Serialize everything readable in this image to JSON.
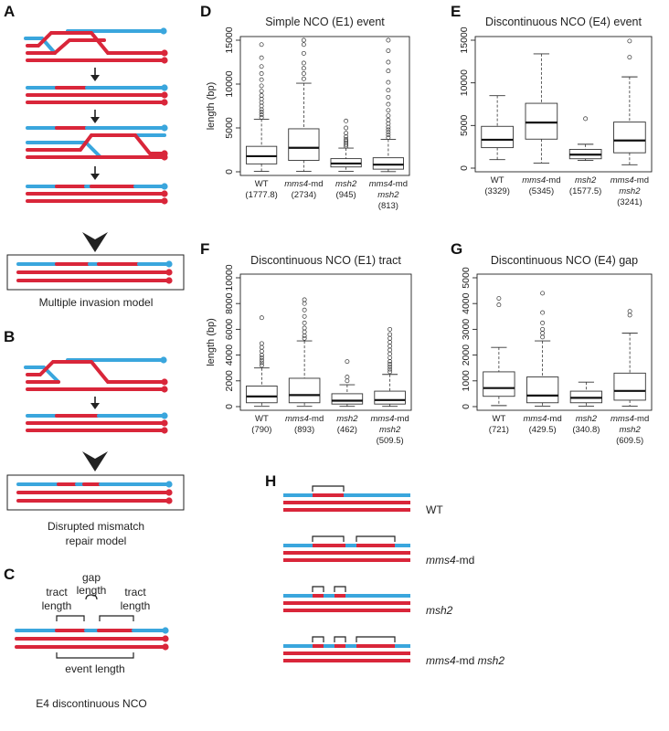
{
  "colors": {
    "blue": "#3aa6dd",
    "red": "#d9263a",
    "ink": "#222222"
  },
  "panels": {
    "A": {
      "label": "A",
      "caption": "Multiple invasion model"
    },
    "B": {
      "label": "B",
      "caption_line1": "Disrupted mismatch",
      "caption_line2": "repair model"
    },
    "C": {
      "label": "C",
      "gap": "gap",
      "length_gap": "length",
      "tract": "tract",
      "length": "length",
      "event_length": "event length",
      "caption": "E4 discontinuous NCO"
    },
    "H": {
      "label": "H",
      "rows": [
        {
          "parts": [
            {
              "text": "WT",
              "italic": false
            }
          ]
        },
        {
          "parts": [
            {
              "text": "mms4",
              "italic": true
            },
            {
              "text": "-md",
              "italic": false
            }
          ]
        },
        {
          "parts": [
            {
              "text": "msh2",
              "italic": true
            }
          ]
        },
        {
          "parts": [
            {
              "text": "mms4",
              "italic": true
            },
            {
              "text": "-md ",
              "italic": false
            },
            {
              "text": "msh2",
              "italic": true
            }
          ]
        }
      ]
    }
  },
  "chart_data": [
    {
      "panel": "D",
      "type": "box",
      "title": "Simple NCO (E1) event",
      "ylabel": "length (bp)",
      "ylim": [
        0,
        15000
      ],
      "yticks": [
        0,
        5000,
        10000,
        15000
      ],
      "categories": [
        {
          "lines": [
            [
              {
                "t": "WT",
                "i": false
              }
            ],
            [
              {
                "t": "(1777.8)",
                "i": false
              }
            ]
          ]
        },
        {
          "lines": [
            [
              {
                "t": "mms4",
                "i": true
              },
              {
                "t": "-md",
                "i": false
              }
            ],
            [
              {
                "t": "(2734)",
                "i": false
              }
            ]
          ]
        },
        {
          "lines": [
            [
              {
                "t": "msh2",
                "i": true
              }
            ],
            [
              {
                "t": "(945)",
                "i": false
              }
            ]
          ]
        },
        {
          "lines": [
            [
              {
                "t": "mms4",
                "i": true
              },
              {
                "t": "-md",
                "i": false
              }
            ],
            [
              {
                "t": "msh2",
                "i": true
              }
            ],
            [
              {
                "t": "(813)",
                "i": false
              }
            ]
          ]
        }
      ],
      "boxes": [
        {
          "q1": 900,
          "median": 1778,
          "q3": 2900,
          "wlo": 50,
          "whi": 6000,
          "outliers": [
            6200,
            6500,
            6800,
            7100,
            7500,
            7900,
            8300,
            8700,
            9200,
            9800,
            10500,
            11200,
            12000,
            13000,
            14500
          ]
        },
        {
          "q1": 1300,
          "median": 2734,
          "q3": 4900,
          "wlo": 50,
          "whi": 10100,
          "outliers": [
            10600,
            11200,
            11800,
            12400,
            13500,
            14500,
            15200
          ]
        },
        {
          "q1": 550,
          "median": 945,
          "q3": 1500,
          "wlo": 50,
          "whi": 2700,
          "outliers": [
            2900,
            3100,
            3300,
            3500,
            3700,
            4000,
            4400,
            5000,
            5800
          ]
        },
        {
          "q1": 300,
          "median": 813,
          "q3": 1600,
          "wlo": 20,
          "whi": 3700,
          "outliers": [
            3900,
            4200,
            4500,
            4800,
            5100,
            5500,
            5900,
            6400,
            7000,
            7700,
            8500,
            9300,
            10200,
            11500,
            12500,
            13800,
            15800
          ]
        }
      ]
    },
    {
      "panel": "E",
      "type": "box",
      "title": "Discontinuous NCO (E4) event",
      "ylabel": "",
      "ylim": [
        0,
        15000
      ],
      "yticks": [
        0,
        5000,
        10000,
        15000
      ],
      "categories": [
        {
          "lines": [
            [
              {
                "t": "WT",
                "i": false
              }
            ],
            [
              {
                "t": "(3329)",
                "i": false
              }
            ]
          ]
        },
        {
          "lines": [
            [
              {
                "t": "mms4",
                "i": true
              },
              {
                "t": "-md",
                "i": false
              }
            ],
            [
              {
                "t": "(5345)",
                "i": false
              }
            ]
          ]
        },
        {
          "lines": [
            [
              {
                "t": "msh2",
                "i": true
              }
            ],
            [
              {
                "t": "(1577.5)",
                "i": false
              }
            ]
          ]
        },
        {
          "lines": [
            [
              {
                "t": "mms4",
                "i": true
              },
              {
                "t": "-md",
                "i": false
              }
            ],
            [
              {
                "t": "msh2",
                "i": true
              }
            ],
            [
              {
                "t": "(3241)",
                "i": false
              }
            ]
          ]
        }
      ],
      "boxes": [
        {
          "q1": 2400,
          "median": 3329,
          "q3": 4900,
          "wlo": 1000,
          "whi": 8500,
          "outliers": []
        },
        {
          "q1": 3400,
          "median": 5345,
          "q3": 7600,
          "wlo": 600,
          "whi": 13400,
          "outliers": []
        },
        {
          "q1": 1100,
          "median": 1578,
          "q3": 2200,
          "wlo": 900,
          "whi": 2800,
          "outliers": [
            5800
          ]
        },
        {
          "q1": 1800,
          "median": 3241,
          "q3": 5400,
          "wlo": 400,
          "whi": 10700,
          "outliers": [
            13000,
            14900
          ]
        }
      ]
    },
    {
      "panel": "F",
      "type": "box",
      "title": "Discontinuous NCO (E1) tract",
      "ylabel": "length (bp)",
      "ylim": [
        0,
        10000
      ],
      "yticks": [
        0,
        2000,
        4000,
        6000,
        8000,
        10000
      ],
      "categories": [
        {
          "lines": [
            [
              {
                "t": "WT",
                "i": false
              }
            ],
            [
              {
                "t": "(790)",
                "i": false
              }
            ]
          ]
        },
        {
          "lines": [
            [
              {
                "t": "mms4",
                "i": true
              },
              {
                "t": "-md",
                "i": false
              }
            ],
            [
              {
                "t": "(893)",
                "i": false
              }
            ]
          ]
        },
        {
          "lines": [
            [
              {
                "t": "msh2",
                "i": true
              }
            ],
            [
              {
                "t": "(462)",
                "i": false
              }
            ]
          ]
        },
        {
          "lines": [
            [
              {
                "t": "mms4",
                "i": true
              },
              {
                "t": "-md",
                "i": false
              }
            ],
            [
              {
                "t": "msh2",
                "i": true
              }
            ],
            [
              {
                "t": "(509.5)",
                "i": false
              }
            ]
          ]
        }
      ],
      "boxes": [
        {
          "q1": 300,
          "median": 790,
          "q3": 1600,
          "wlo": 20,
          "whi": 3000,
          "outliers": [
            3200,
            3400,
            3600,
            3800,
            4000,
            4300,
            4600,
            4900,
            6900
          ]
        },
        {
          "q1": 300,
          "median": 893,
          "q3": 2200,
          "wlo": 20,
          "whi": 5100,
          "outliers": [
            5300,
            5500,
            5800,
            6100,
            6500,
            7000,
            7500,
            8000,
            8300
          ]
        },
        {
          "q1": 200,
          "median": 462,
          "q3": 1000,
          "wlo": 20,
          "whi": 1700,
          "outliers": [
            2000,
            2300,
            3500
          ]
        },
        {
          "q1": 200,
          "median": 510,
          "q3": 1200,
          "wlo": 20,
          "whi": 2500,
          "outliers": [
            2700,
            2900,
            3100,
            3300,
            3500,
            3800,
            4100,
            4400,
            4700,
            5000,
            5300,
            5600,
            6000
          ]
        }
      ]
    },
    {
      "panel": "G",
      "type": "box",
      "title": "Discontinuous NCO (E4) gap",
      "ylabel": "",
      "ylim": [
        0,
        5000
      ],
      "yticks": [
        0,
        1000,
        2000,
        3000,
        4000,
        5000
      ],
      "categories": [
        {
          "lines": [
            [
              {
                "t": "WT",
                "i": false
              }
            ],
            [
              {
                "t": "(721)",
                "i": false
              }
            ]
          ]
        },
        {
          "lines": [
            [
              {
                "t": "mms4",
                "i": true
              },
              {
                "t": "-md",
                "i": false
              }
            ],
            [
              {
                "t": "(429.5)",
                "i": false
              }
            ]
          ]
        },
        {
          "lines": [
            [
              {
                "t": "msh2",
                "i": true
              }
            ],
            [
              {
                "t": "(340.8)",
                "i": false
              }
            ]
          ]
        },
        {
          "lines": [
            [
              {
                "t": "mms4",
                "i": true
              },
              {
                "t": "-md",
                "i": false
              }
            ],
            [
              {
                "t": "msh2",
                "i": true
              }
            ],
            [
              {
                "t": "(609.5)",
                "i": false
              }
            ]
          ]
        }
      ],
      "boxes": [
        {
          "q1": 400,
          "median": 721,
          "q3": 1350,
          "wlo": 40,
          "whi": 2300,
          "outliers": [
            3950,
            4200
          ]
        },
        {
          "q1": 150,
          "median": 430,
          "q3": 1150,
          "wlo": 20,
          "whi": 2550,
          "outliers": [
            2700,
            2850,
            3000,
            3250,
            3650,
            4400
          ]
        },
        {
          "q1": 150,
          "median": 341,
          "q3": 600,
          "wlo": 20,
          "whi": 950,
          "outliers": []
        },
        {
          "q1": 250,
          "median": 610,
          "q3": 1300,
          "wlo": 20,
          "whi": 2850,
          "outliers": [
            3550,
            3700
          ]
        }
      ]
    }
  ]
}
